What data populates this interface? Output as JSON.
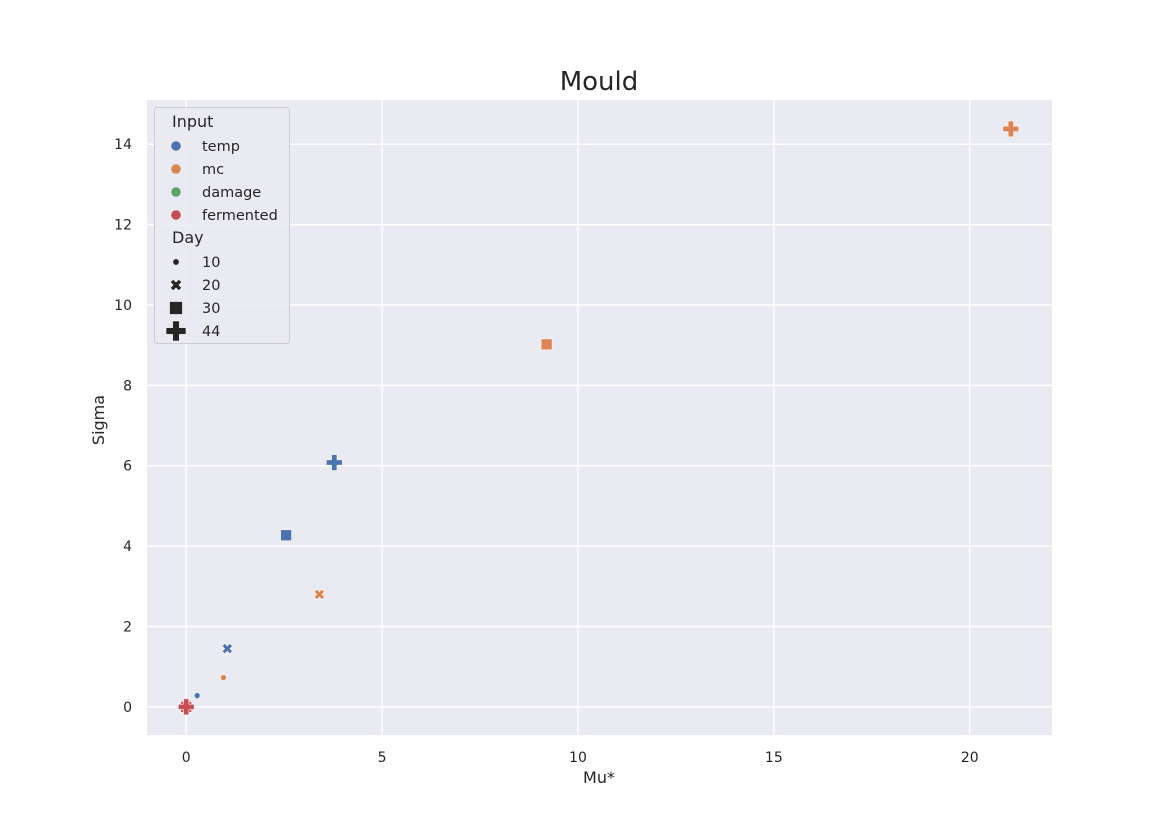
{
  "chart_data": {
    "type": "scatter",
    "title": "Mould",
    "xlabel": "Mu*",
    "ylabel": "Sigma",
    "xlim": [
      -1,
      22.1
    ],
    "ylim": [
      -0.7,
      15.1
    ],
    "xticks": [
      0,
      5,
      10,
      15,
      20
    ],
    "yticks": [
      0,
      2,
      4,
      6,
      8,
      10,
      12,
      14
    ],
    "grid": true,
    "legend_position": "upper-left",
    "hue_title": "Input",
    "style_title": "Day",
    "hue_entries": [
      {
        "label": "temp",
        "color": "#4c72b0"
      },
      {
        "label": "mc",
        "color": "#dd8452"
      },
      {
        "label": "damage",
        "color": "#55a868"
      },
      {
        "label": "fermented",
        "color": "#c44e52"
      }
    ],
    "style_entries": [
      {
        "label": "10",
        "marker": "circle"
      },
      {
        "label": "20",
        "marker": "x"
      },
      {
        "label": "30",
        "marker": "square"
      },
      {
        "label": "44",
        "marker": "plus"
      }
    ],
    "points": [
      {
        "input": "temp",
        "day": "10",
        "x": 0.28,
        "y": 0.28
      },
      {
        "input": "temp",
        "day": "20",
        "x": 1.05,
        "y": 1.45
      },
      {
        "input": "temp",
        "day": "30",
        "x": 2.55,
        "y": 4.27
      },
      {
        "input": "temp",
        "day": "44",
        "x": 3.78,
        "y": 6.08
      },
      {
        "input": "mc",
        "day": "10",
        "x": 0.95,
        "y": 0.73
      },
      {
        "input": "mc",
        "day": "20",
        "x": 3.4,
        "y": 2.8
      },
      {
        "input": "mc",
        "day": "30",
        "x": 9.2,
        "y": 9.02
      },
      {
        "input": "mc",
        "day": "44",
        "x": 21.05,
        "y": 14.38
      },
      {
        "input": "damage",
        "day": "10",
        "x": 0.0,
        "y": 0.0
      },
      {
        "input": "damage",
        "day": "20",
        "x": 0.0,
        "y": 0.0
      },
      {
        "input": "damage",
        "day": "30",
        "x": 0.0,
        "y": 0.0
      },
      {
        "input": "damage",
        "day": "44",
        "x": 0.0,
        "y": 0.0
      },
      {
        "input": "fermented",
        "day": "10",
        "x": 0.0,
        "y": 0.0
      },
      {
        "input": "fermented",
        "day": "20",
        "x": 0.0,
        "y": 0.0
      },
      {
        "input": "fermented",
        "day": "30",
        "x": 0.0,
        "y": 0.0
      },
      {
        "input": "fermented",
        "day": "44",
        "x": 0.0,
        "y": 0.0
      }
    ]
  }
}
